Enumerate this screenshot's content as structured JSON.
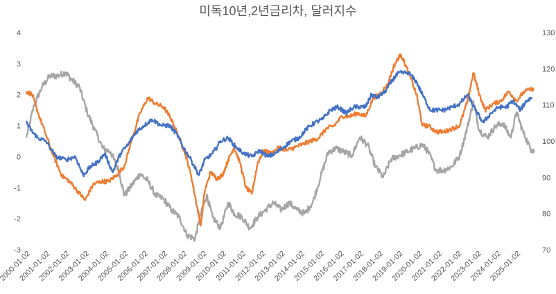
{
  "chart_data": {
    "type": "line",
    "title": "미독10년,2년금리차, 달러지수",
    "xlabel": "",
    "ylabel": "",
    "grid": false,
    "legend": "none",
    "x_range": [
      "2000-01-02",
      "2025-12-31"
    ],
    "y_left": {
      "min": -3,
      "max": 4,
      "ticks": [
        "-3",
        "-2",
        "-1",
        "0",
        "1",
        "2",
        "3",
        "4"
      ]
    },
    "y_right": {
      "min": 70,
      "max": 130,
      "ticks": [
        "70",
        "80",
        "90",
        "100",
        "110",
        "120",
        "130"
      ]
    },
    "x_ticks": [
      "2000-01-02",
      "2001-01-02",
      "2002-01-02",
      "2003-01-02",
      "2004-01-02",
      "2005-01-02",
      "2006-01-02",
      "2007-01-02",
      "2008-01-02",
      "2009-01-02",
      "2010-01-02",
      "2011-01-02",
      "2012-01-02",
      "2013-01-02",
      "2014-01-02",
      "2015-01-02",
      "2016-01-02",
      "2017-01-02",
      "2018-01-02",
      "2019-01-02",
      "2020-01-02",
      "2021-01-02",
      "2022-01-02",
      "2023-01-02",
      "2024-01-02",
      "2025-01-02"
    ],
    "series": [
      {
        "color": "#4472C4",
        "axis": "left",
        "points": [
          [
            2000.0,
            1.1
          ],
          [
            2000.3,
            0.8
          ],
          [
            2000.6,
            0.6
          ],
          [
            2001.0,
            0.5
          ],
          [
            2001.5,
            0.0
          ],
          [
            2002.0,
            -0.1
          ],
          [
            2002.5,
            0.0
          ],
          [
            2002.9,
            -0.6
          ],
          [
            2003.3,
            -0.3
          ],
          [
            2003.6,
            -0.2
          ],
          [
            2004.0,
            0.1
          ],
          [
            2004.4,
            -0.5
          ],
          [
            2004.8,
            0.1
          ],
          [
            2005.2,
            0.4
          ],
          [
            2005.6,
            0.8
          ],
          [
            2006.0,
            1.0
          ],
          [
            2006.4,
            1.2
          ],
          [
            2006.9,
            1.0
          ],
          [
            2007.3,
            1.0
          ],
          [
            2007.7,
            0.7
          ],
          [
            2008.0,
            0.3
          ],
          [
            2008.4,
            -0.1
          ],
          [
            2008.8,
            -0.6
          ],
          [
            2009.1,
            -0.1
          ],
          [
            2009.5,
            0.1
          ],
          [
            2009.9,
            0.5
          ],
          [
            2010.3,
            0.6
          ],
          [
            2010.7,
            0.3
          ],
          [
            2011.1,
            0.1
          ],
          [
            2011.5,
            0.0
          ],
          [
            2011.9,
            0.2
          ],
          [
            2012.3,
            0.0
          ],
          [
            2012.7,
            0.1
          ],
          [
            2013.1,
            0.3
          ],
          [
            2013.5,
            0.5
          ],
          [
            2013.9,
            0.6
          ],
          [
            2014.3,
            0.9
          ],
          [
            2014.7,
            1.1
          ],
          [
            2015.1,
            1.2
          ],
          [
            2015.5,
            1.5
          ],
          [
            2015.9,
            1.6
          ],
          [
            2016.3,
            1.4
          ],
          [
            2016.7,
            1.6
          ],
          [
            2017.0,
            1.6
          ],
          [
            2017.3,
            1.6
          ],
          [
            2017.6,
            2.0
          ],
          [
            2017.9,
            1.9
          ],
          [
            2018.3,
            2.1
          ],
          [
            2018.7,
            2.5
          ],
          [
            2019.0,
            2.7
          ],
          [
            2019.5,
            2.7
          ],
          [
            2019.9,
            2.4
          ],
          [
            2020.2,
            2.0
          ],
          [
            2020.6,
            1.5
          ],
          [
            2020.9,
            1.5
          ],
          [
            2021.3,
            1.5
          ],
          [
            2021.7,
            1.6
          ],
          [
            2022.1,
            1.7
          ],
          [
            2022.5,
            2.0
          ],
          [
            2022.9,
            1.5
          ],
          [
            2023.3,
            1.1
          ],
          [
            2023.7,
            1.4
          ],
          [
            2024.1,
            1.6
          ],
          [
            2024.5,
            1.6
          ],
          [
            2024.8,
            1.8
          ],
          [
            2025.2,
            1.5
          ],
          [
            2025.5,
            1.8
          ],
          [
            2025.8,
            1.9
          ]
        ]
      },
      {
        "color": "#ED7D31",
        "axis": "left",
        "points": [
          [
            2000.0,
            2.1
          ],
          [
            2000.3,
            2.0
          ],
          [
            2000.6,
            1.4
          ],
          [
            2001.0,
            0.7
          ],
          [
            2001.4,
            0.0
          ],
          [
            2001.8,
            -0.6
          ],
          [
            2002.2,
            -0.8
          ],
          [
            2002.6,
            -1.1
          ],
          [
            2003.0,
            -1.4
          ],
          [
            2003.4,
            -0.9
          ],
          [
            2003.8,
            -0.8
          ],
          [
            2004.2,
            -0.8
          ],
          [
            2004.6,
            -0.6
          ],
          [
            2005.0,
            -0.3
          ],
          [
            2005.4,
            0.6
          ],
          [
            2005.8,
            1.4
          ],
          [
            2006.2,
            1.9
          ],
          [
            2006.6,
            1.7
          ],
          [
            2007.0,
            1.6
          ],
          [
            2007.4,
            1.2
          ],
          [
            2007.8,
            0.6
          ],
          [
            2008.1,
            0.1
          ],
          [
            2008.4,
            -0.6
          ],
          [
            2008.7,
            -1.6
          ],
          [
            2008.9,
            -2.2
          ],
          [
            2009.1,
            -1.1
          ],
          [
            2009.4,
            -0.5
          ],
          [
            2009.7,
            -0.7
          ],
          [
            2010.0,
            -0.6
          ],
          [
            2010.3,
            -0.1
          ],
          [
            2010.6,
            0.3
          ],
          [
            2010.9,
            -0.2
          ],
          [
            2011.2,
            -1.0
          ],
          [
            2011.5,
            -1.2
          ],
          [
            2011.8,
            -0.2
          ],
          [
            2012.1,
            0.2
          ],
          [
            2012.5,
            0.1
          ],
          [
            2012.9,
            0.3
          ],
          [
            2013.3,
            0.2
          ],
          [
            2013.7,
            0.3
          ],
          [
            2014.1,
            0.4
          ],
          [
            2014.5,
            0.5
          ],
          [
            2014.9,
            0.6
          ],
          [
            2015.3,
            0.9
          ],
          [
            2015.7,
            1.0
          ],
          [
            2016.1,
            1.3
          ],
          [
            2016.5,
            1.3
          ],
          [
            2016.9,
            1.4
          ],
          [
            2017.3,
            1.3
          ],
          [
            2017.7,
            1.9
          ],
          [
            2018.0,
            2.0
          ],
          [
            2018.4,
            2.3
          ],
          [
            2018.8,
            3.0
          ],
          [
            2019.1,
            3.3
          ],
          [
            2019.5,
            2.7
          ],
          [
            2019.9,
            2.0
          ],
          [
            2020.2,
            1.0
          ],
          [
            2020.5,
            1.0
          ],
          [
            2020.9,
            0.8
          ],
          [
            2021.3,
            0.8
          ],
          [
            2021.7,
            0.9
          ],
          [
            2022.1,
            1.0
          ],
          [
            2022.5,
            1.8
          ],
          [
            2022.8,
            2.7
          ],
          [
            2023.1,
            2.0
          ],
          [
            2023.4,
            1.5
          ],
          [
            2023.8,
            1.7
          ],
          [
            2024.2,
            1.8
          ],
          [
            2024.6,
            2.1
          ],
          [
            2025.0,
            1.8
          ],
          [
            2025.4,
            2.1
          ],
          [
            2025.9,
            2.2
          ]
        ]
      },
      {
        "color": "#A5A5A5",
        "axis": "right",
        "points": [
          [
            2000.0,
            101
          ],
          [
            2000.4,
            110
          ],
          [
            2000.8,
            115
          ],
          [
            2001.2,
            118
          ],
          [
            2001.6,
            118
          ],
          [
            2002.0,
            119
          ],
          [
            2002.3,
            117
          ],
          [
            2002.7,
            115
          ],
          [
            2003.1,
            108
          ],
          [
            2003.5,
            103
          ],
          [
            2003.9,
            98
          ],
          [
            2004.3,
            97
          ],
          [
            2004.7,
            92
          ],
          [
            2005.0,
            85
          ],
          [
            2005.4,
            88
          ],
          [
            2005.8,
            91
          ],
          [
            2006.2,
            89
          ],
          [
            2006.6,
            85
          ],
          [
            2007.0,
            84
          ],
          [
            2007.4,
            81
          ],
          [
            2007.8,
            79
          ],
          [
            2008.2,
            74
          ],
          [
            2008.6,
            73
          ],
          [
            2008.9,
            80
          ],
          [
            2009.2,
            85
          ],
          [
            2009.5,
            79
          ],
          [
            2009.9,
            76
          ],
          [
            2010.3,
            83
          ],
          [
            2010.6,
            80
          ],
          [
            2011.0,
            79
          ],
          [
            2011.4,
            76
          ],
          [
            2011.8,
            79
          ],
          [
            2012.2,
            81
          ],
          [
            2012.6,
            83
          ],
          [
            2013.0,
            81
          ],
          [
            2013.4,
            83
          ],
          [
            2013.8,
            81
          ],
          [
            2014.2,
            80
          ],
          [
            2014.6,
            83
          ],
          [
            2015.0,
            90
          ],
          [
            2015.4,
            97
          ],
          [
            2015.8,
            98
          ],
          [
            2016.2,
            97
          ],
          [
            2016.6,
            96
          ],
          [
            2017.0,
            101
          ],
          [
            2017.4,
            99
          ],
          [
            2017.8,
            93
          ],
          [
            2018.2,
            90
          ],
          [
            2018.6,
            95
          ],
          [
            2019.0,
            96
          ],
          [
            2019.4,
            97
          ],
          [
            2019.8,
            98
          ],
          [
            2020.2,
            99
          ],
          [
            2020.5,
            97
          ],
          [
            2020.9,
            92
          ],
          [
            2021.3,
            92
          ],
          [
            2021.7,
            93
          ],
          [
            2022.1,
            96
          ],
          [
            2022.5,
            104
          ],
          [
            2022.8,
            111
          ],
          [
            2023.1,
            103
          ],
          [
            2023.5,
            101
          ],
          [
            2023.9,
            104
          ],
          [
            2024.3,
            105
          ],
          [
            2024.7,
            101
          ],
          [
            2025.0,
            108
          ],
          [
            2025.3,
            103
          ],
          [
            2025.7,
            98
          ],
          [
            2025.9,
            97
          ]
        ]
      }
    ]
  }
}
